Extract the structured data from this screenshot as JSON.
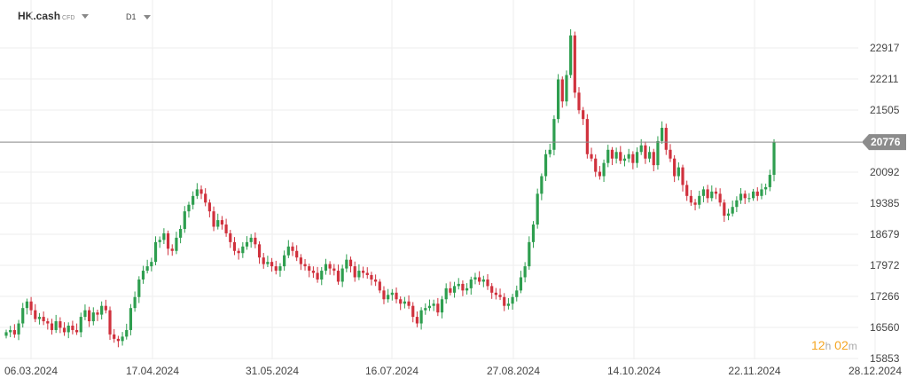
{
  "header": {
    "symbol": "HK.cash",
    "symbol_type": "CFD",
    "timeframe": "D1"
  },
  "timer": {
    "hours": "12",
    "h_unit": "h",
    "minutes": "02",
    "m_unit": "m"
  },
  "colors": {
    "up": "#2e9e4f",
    "down": "#d0313d",
    "grid": "#eeeeee",
    "price_line": "#888888",
    "price_tag": "#8c8c8c"
  },
  "chart_data": {
    "type": "candlestick",
    "y_ticks": [
      15853,
      16560,
      17266,
      17972,
      18679,
      19385,
      20092,
      20776,
      21505,
      22211,
      22917
    ],
    "x_ticks": [
      "06.03.2024",
      "17.04.2024",
      "31.05.2024",
      "16.07.2024",
      "27.08.2024",
      "14.10.2024",
      "22.11.2024",
      "28.12.2024"
    ],
    "last_price": 20776,
    "close": [
      16450,
      16500,
      16400,
      16650,
      17000,
      17150,
      16950,
      16750,
      16800,
      16700,
      16650,
      16500,
      16700,
      16550,
      16450,
      16600,
      16500,
      16450,
      16800,
      16950,
      16700,
      16900,
      16850,
      17050,
      16950,
      16400,
      16300,
      16250,
      16350,
      16500,
      17000,
      17250,
      17650,
      17850,
      17950,
      18050,
      18500,
      18550,
      18700,
      18350,
      18300,
      18600,
      18800,
      19200,
      19350,
      19550,
      19700,
      19600,
      19400,
      19200,
      18850,
      19000,
      18900,
      18700,
      18500,
      18300,
      18250,
      18400,
      18500,
      18600,
      18450,
      18150,
      18000,
      18050,
      17950,
      17850,
      17950,
      18200,
      18400,
      18300,
      18150,
      18000,
      17950,
      17850,
      17800,
      17650,
      17850,
      18000,
      17900,
      17850,
      17600,
      17900,
      18100,
      17950,
      17700,
      17850,
      17800,
      17750,
      17650,
      17600,
      17400,
      17200,
      17300,
      17350,
      17200,
      17100,
      17150,
      17050,
      16800,
      16650,
      16950,
      17000,
      17050,
      17100,
      16900,
      17200,
      17450,
      17350,
      17500,
      17550,
      17400,
      17450,
      17650,
      17700,
      17600,
      17650,
      17500,
      17350,
      17300,
      17250,
      17050,
      17100,
      17250,
      17400,
      17700,
      17950,
      18500,
      18900,
      19600,
      20000,
      20500,
      20600,
      21300,
      22200,
      21700,
      22300,
      23200,
      21900,
      21500,
      21300,
      20500,
      20400,
      20100,
      20000,
      20300,
      20600,
      20400,
      20550,
      20350,
      20400,
      20500,
      20300,
      20550,
      20700,
      20400,
      20550,
      20250,
      20800,
      21100,
      20600,
      20400,
      20000,
      20200,
      19800,
      19550,
      19400,
      19350,
      19550,
      19700,
      19500,
      19650,
      19600,
      19400,
      19100,
      19150,
      19300,
      19450,
      19600,
      19500,
      19500,
      19650,
      19550,
      19700,
      19750,
      20030,
      20776
    ]
  }
}
